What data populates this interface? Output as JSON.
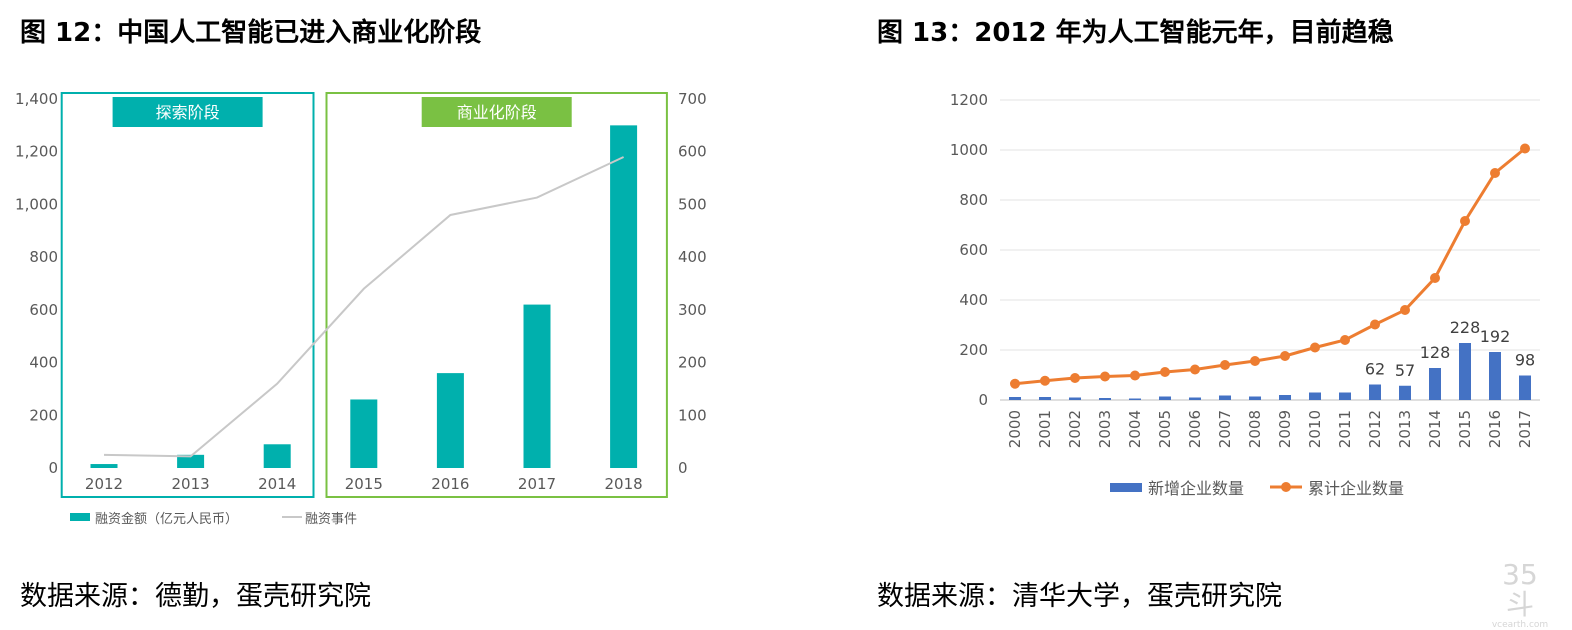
{
  "left": {
    "title": "图 12：中国人工智能已进入商业化阶段",
    "source": "数据来源：德勤，蛋壳研究院"
  },
  "right": {
    "title": "图 13：2012 年为人工智能元年，目前趋稳",
    "source": "数据来源：清华大学，蛋壳研究院"
  },
  "watermark": {
    "main": "35斗",
    "sub": "vcearth.com"
  },
  "chart_data": [
    {
      "type": "bar",
      "title": "图 12：中国人工智能已进入商业化阶段",
      "categories": [
        "2012",
        "2013",
        "2014",
        "2015",
        "2016",
        "2017",
        "2018"
      ],
      "series": [
        {
          "name": "融资金额（亿元人民币）",
          "type": "bar",
          "axis": "left",
          "color": "#00b0ad",
          "values": [
            15,
            50,
            90,
            260,
            360,
            620,
            1300
          ]
        },
        {
          "name": "融资事件",
          "type": "line",
          "axis": "right",
          "color": "#c8c8c8",
          "values": [
            25,
            22,
            160,
            340,
            480,
            513,
            590
          ]
        }
      ],
      "y_left": {
        "min": 0,
        "max": 1400,
        "ticks": [
          0,
          200,
          400,
          600,
          800,
          1000,
          1200,
          1400
        ],
        "tick_labels": [
          "0",
          "200",
          "400",
          "600",
          "800",
          "1,000",
          "1,200",
          "1,400"
        ]
      },
      "y_right": {
        "min": 0,
        "max": 700,
        "ticks": [
          0,
          100,
          200,
          300,
          400,
          500,
          600,
          700
        ],
        "tick_labels": [
          "0",
          "100",
          "200",
          "300",
          "400",
          "500",
          "600",
          "700"
        ]
      },
      "phases": [
        {
          "label": "探索阶段",
          "color": "#00b0ad",
          "from": "2012",
          "to": "2014"
        },
        {
          "label": "商业化阶段",
          "color": "#7ac143",
          "from": "2015",
          "to": "2018"
        }
      ],
      "legend_position": "bottom-left"
    },
    {
      "type": "bar",
      "title": "图 13：2012 年为人工智能元年，目前趋稳",
      "categories": [
        "2000",
        "2001",
        "2002",
        "2003",
        "2004",
        "2005",
        "2006",
        "2007",
        "2008",
        "2009",
        "2010",
        "2011",
        "2012",
        "2013",
        "2014",
        "2015",
        "2016",
        "2017"
      ],
      "series": [
        {
          "name": "新增企业数量",
          "type": "bar",
          "color": "#4472c4",
          "values": [
            12,
            12,
            10,
            8,
            6,
            14,
            10,
            18,
            14,
            20,
            30,
            30,
            62,
            57,
            128,
            228,
            192,
            98
          ],
          "labels": [
            "",
            "",
            "",
            "",
            "",
            "",
            "",
            "",
            "",
            "",
            "",
            "",
            "62",
            "57",
            "128",
            "228",
            "192",
            "98"
          ]
        },
        {
          "name": "累计企业数量",
          "type": "line",
          "color": "#ed7d31",
          "values": [
            65,
            77,
            88,
            94,
            98,
            112,
            122,
            140,
            156,
            176,
            210,
            240,
            302,
            360,
            488,
            716,
            908,
            1006
          ]
        }
      ],
      "y": {
        "min": 0,
        "max": 1200,
        "ticks": [
          0,
          200,
          400,
          600,
          800,
          1000,
          1200
        ],
        "tick_labels": [
          "0",
          "200",
          "400",
          "600",
          "800",
          "1000",
          "1200"
        ]
      },
      "grid": true,
      "legend_position": "bottom-center"
    }
  ]
}
